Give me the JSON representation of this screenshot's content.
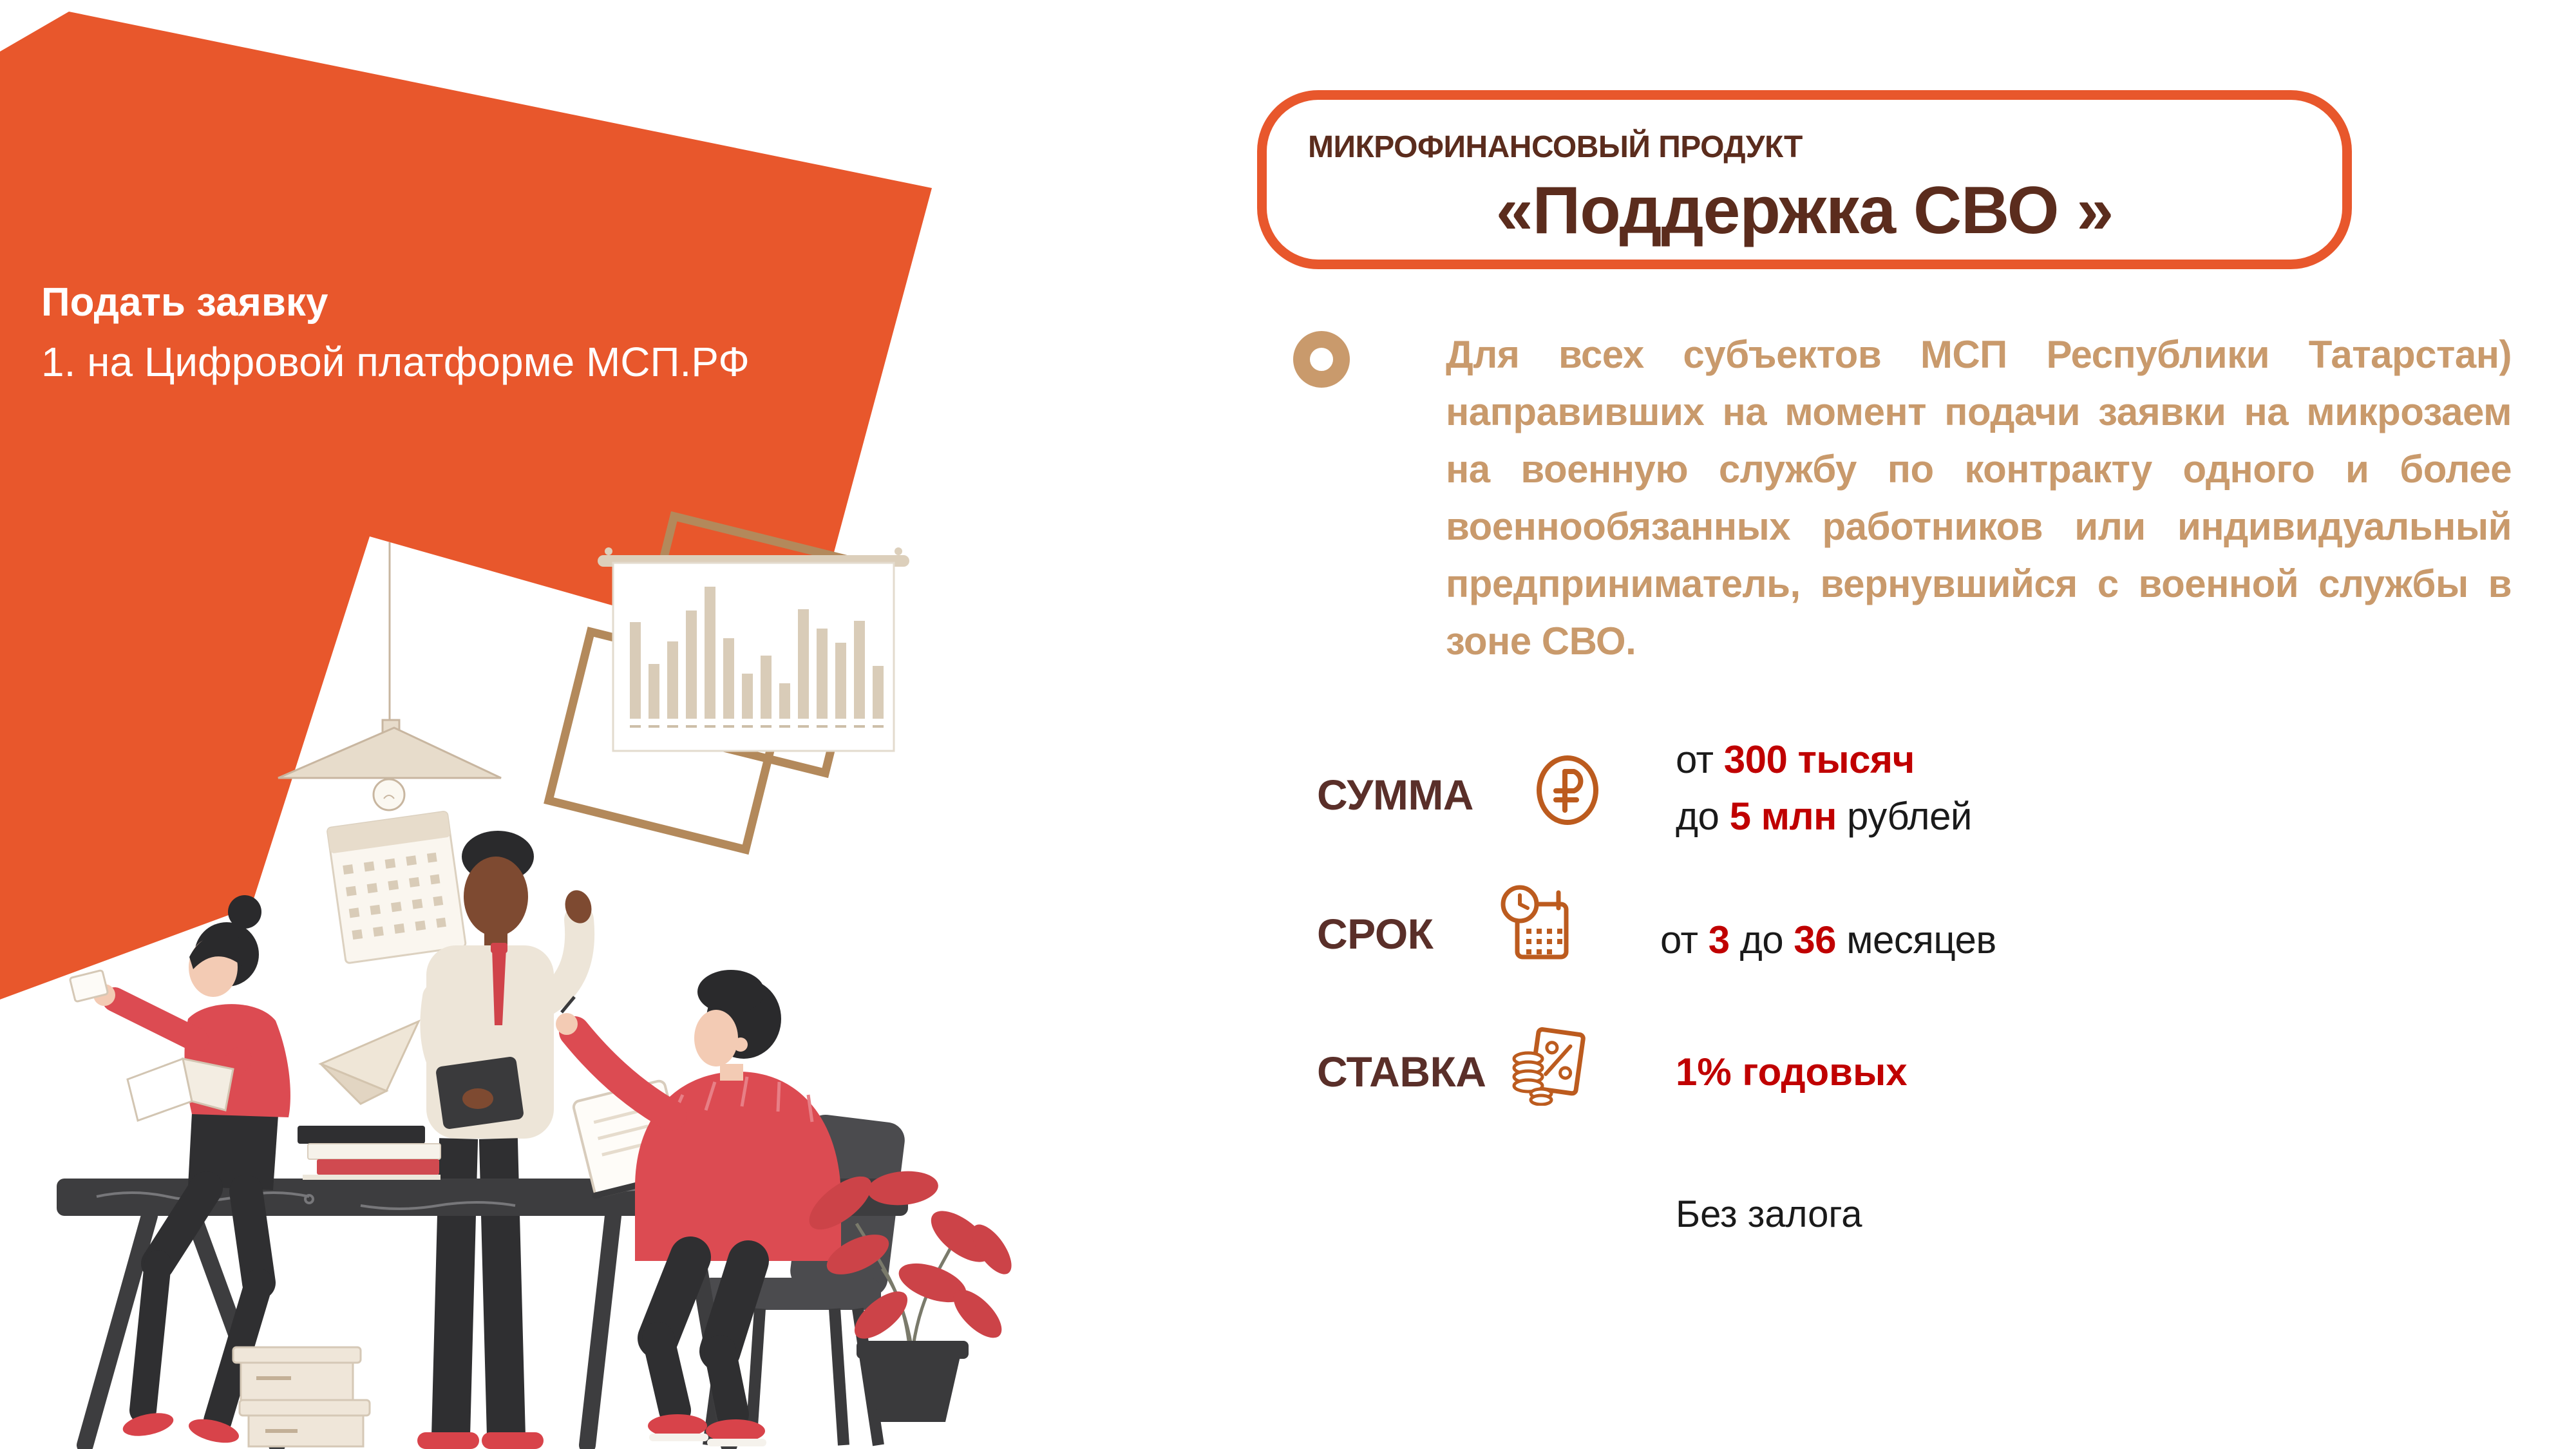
{
  "slide": {
    "left_panel": {
      "heading": "Подать заявку",
      "subheading": "1. на Цифровой платформе МСП.РФ"
    },
    "header": {
      "kicker": "МИКРОФИНАНСОВЫЙ ПРОДУКТ",
      "title": "«Поддержка СВО »"
    },
    "description": "Для всех субъектов МСП Республики Татарстан) направивших на момент подачи заявки на микрозаем на военную службу по контракту одного и более военнообязанных работников или индивидуальный предприниматель, вернувшийся с военной службы в зоне СВО.",
    "terms": {
      "sum": {
        "label": "СУММА",
        "icon": "ruble-circle-icon",
        "from_word": "от ",
        "amount_from": "300 тысяч",
        "to_word": "до ",
        "amount_to": "5 млн",
        "suffix": " рублей"
      },
      "period": {
        "label": "СРОК",
        "icon": "calendar-clock-icon",
        "from_word": "от ",
        "value_from": "3",
        "to_word": " до ",
        "value_to": "36",
        "suffix": " месяцев"
      },
      "rate": {
        "label": "СТАВКА",
        "icon": "coins-percent-icon",
        "value": "1% годовых"
      }
    },
    "note": "Без залога",
    "colors": {
      "accent_orange": "#E8572C",
      "title_brown": "#5B2C1D",
      "label_brown": "#5A2F29",
      "paragraph_tan": "#C99A6C",
      "value_red": "#C00000",
      "icon_copper": "#BC5B1E",
      "gold_frame": "#B3895B",
      "text_black": "#1A1A1A",
      "illustration_red": "#DC4B52",
      "illustration_dark": "#3D3D3F"
    },
    "illustration": {
      "name": "office-team-illustration",
      "wall_chart_bars": [
        150,
        85,
        120,
        168,
        205,
        125,
        70,
        98,
        55,
        170,
        140,
        118,
        152,
        82
      ]
    }
  }
}
